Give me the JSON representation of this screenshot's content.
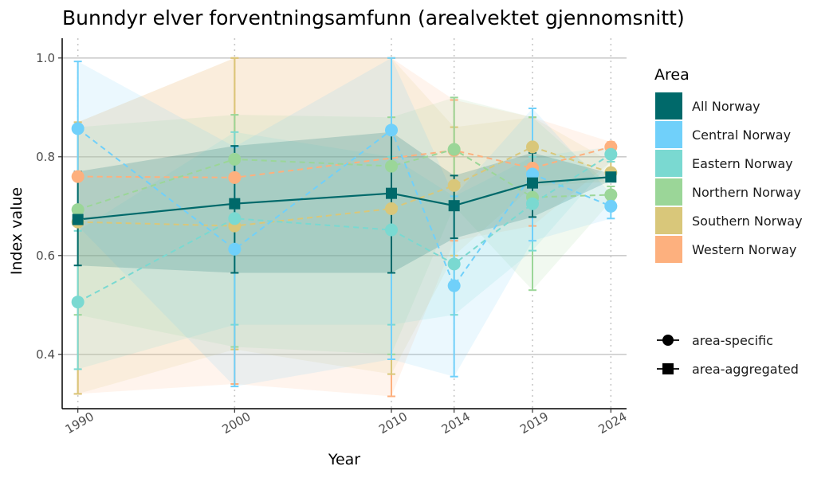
{
  "chart_data": {
    "type": "line",
    "title": "Bunndyr elver forventningsamfunn (arealvektet gjennomsnitt)",
    "xlabel": "Year",
    "ylabel": "Index value",
    "x": [
      1990,
      2000,
      2010,
      2014,
      2019,
      2024
    ],
    "xlim": [
      1989,
      2025
    ],
    "ylim": [
      0.29,
      1.04
    ],
    "yticks": [
      0.4,
      0.6,
      0.8,
      1.0
    ],
    "ytick_labels": [
      "0.4",
      "0.6",
      "0.8",
      "1.0"
    ],
    "xtick_labels": [
      "1990",
      "2000",
      "2010",
      "2014",
      "2019",
      "2024"
    ],
    "grid": "horizontal major lines; vertical dotted lines at data years",
    "legend_title": "Area",
    "legend_position": "right",
    "series": [
      {
        "name": "Western Norway",
        "color": "#FDB07E",
        "kind": "area-specific",
        "values": [
          0.76,
          0.758,
          null,
          0.813,
          0.777,
          0.82
        ],
        "lower": [
          0.32,
          0.34,
          0.315,
          0.63,
          0.66,
          0.79
        ],
        "upper": [
          0.87,
          1.0,
          1.0,
          0.915,
          0.88,
          0.83
        ]
      },
      {
        "name": "Southern Norway",
        "color": "#D9C77A",
        "kind": "area-specific",
        "values": [
          0.668,
          0.66,
          0.695,
          0.742,
          0.82,
          0.768
        ],
        "lower": [
          0.32,
          0.41,
          0.36,
          0.6,
          0.74,
          0.75
        ],
        "upper": [
          0.87,
          1.0,
          1.0,
          0.86,
          0.88,
          0.79
        ]
      },
      {
        "name": "Northern Norway",
        "color": "#9BD698",
        "kind": "area-specific",
        "values": [
          0.693,
          0.795,
          0.781,
          0.815,
          0.718,
          0.723
        ],
        "lower": [
          0.48,
          0.415,
          0.4,
          0.7,
          0.53,
          0.71
        ],
        "upper": [
          0.86,
          0.885,
          0.88,
          0.92,
          0.88,
          0.74
        ]
      },
      {
        "name": "Eastern Norway",
        "color": "#7AD9D1",
        "kind": "area-specific",
        "values": [
          0.506,
          0.675,
          0.652,
          0.583,
          0.705,
          0.805
        ],
        "lower": [
          0.37,
          0.46,
          0.46,
          0.48,
          0.61,
          0.79
        ],
        "upper": [
          0.65,
          0.85,
          0.8,
          0.72,
          0.8,
          0.82
        ]
      },
      {
        "name": "Central Norway",
        "color": "#70D0FA",
        "kind": "area-specific",
        "values": [
          0.857,
          0.613,
          0.854,
          0.539,
          0.765,
          0.7
        ],
        "lower": [
          0.66,
          0.335,
          0.39,
          0.355,
          0.63,
          0.675
        ],
        "upper": [
          0.993,
          0.82,
          1.0,
          0.72,
          0.898,
          0.725
        ]
      },
      {
        "name": "All Norway",
        "color": "#00696A",
        "kind": "area-aggregated",
        "values": [
          0.673,
          0.705,
          0.726,
          0.701,
          0.747,
          0.759
        ],
        "lower": [
          0.58,
          0.565,
          0.565,
          0.635,
          0.678,
          0.752
        ],
        "upper": [
          0.77,
          0.822,
          0.85,
          0.762,
          0.808,
          0.766
        ]
      }
    ],
    "legend": {
      "title": "Area",
      "items": [
        "All Norway",
        "Central Norway",
        "Eastern Norway",
        "Northern Norway",
        "Southern Norway",
        "Western Norway"
      ],
      "colors": [
        "#00696A",
        "#70D0FA",
        "#7AD9D1",
        "#9BD698",
        "#D9C77A",
        "#FDB07E"
      ]
    },
    "shape_legend": [
      {
        "label": "area-specific",
        "shape": "circle"
      },
      {
        "label": "area-aggregated",
        "shape": "square"
      }
    ]
  }
}
